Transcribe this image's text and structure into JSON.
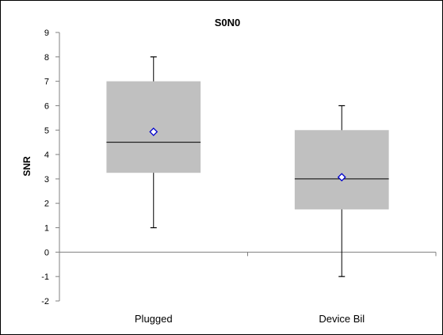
{
  "chart_data": {
    "type": "box",
    "title": "S0N0",
    "xlabel": "",
    "ylabel": "SNR",
    "ylim": [
      -2,
      9
    ],
    "yticks": [
      -2,
      -1,
      0,
      1,
      2,
      3,
      4,
      5,
      6,
      7,
      8,
      9
    ],
    "grid": false,
    "categories": [
      "Plugged",
      "Device Bil"
    ],
    "series": [
      {
        "category": "Plugged",
        "min": 1,
        "q1": 3.25,
        "median": 4.5,
        "q3": 7,
        "max": 8,
        "mean": 4.93
      },
      {
        "category": "Device Bil",
        "min": -1,
        "q1": 1.75,
        "median": 3,
        "q3": 5,
        "max": 6,
        "mean": 3.07
      }
    ],
    "colors": {
      "box_fill": "#c0c0c0",
      "line": "#000000",
      "axis": "#808080",
      "mean_marker_stroke": "#0000cc",
      "mean_marker_fill": "#ffffff"
    }
  }
}
